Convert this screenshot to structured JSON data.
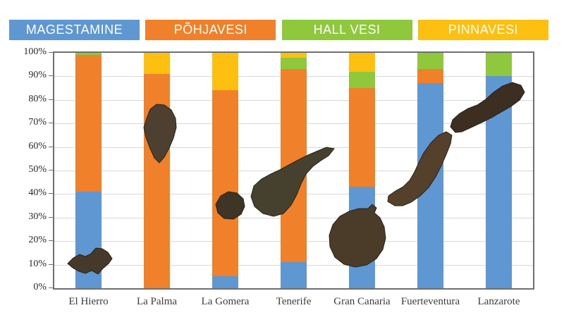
{
  "legend": {
    "items": [
      {
        "label": "MAGESTAMINE",
        "color": "#5F97D3"
      },
      {
        "label": "PÕHJAVESI",
        "color": "#F0802A"
      },
      {
        "label": "HALL VESI",
        "color": "#90C83D"
      },
      {
        "label": "PINNAVESI",
        "color": "#FDC011"
      }
    ]
  },
  "chart_data": {
    "type": "bar",
    "stacked": true,
    "unit": "percent",
    "categories": [
      "El Hierro",
      "La Palma",
      "La Gomera",
      "Tenerife",
      "Gran Canaria",
      "Fuerteventura",
      "Lanzarote"
    ],
    "series": [
      {
        "name": "MAGESTAMINE",
        "color": "#5F97D3",
        "values": [
          41,
          0,
          5,
          11,
          43,
          87,
          90
        ]
      },
      {
        "name": "PÕHJAVESI",
        "color": "#F0802A",
        "values": [
          58,
          91,
          79,
          82,
          42,
          6,
          0
        ]
      },
      {
        "name": "HALL VESI",
        "color": "#90C83D",
        "values": [
          1,
          0,
          0,
          5,
          7,
          7,
          10
        ]
      },
      {
        "name": "PINNAVESI",
        "color": "#FDC011",
        "values": [
          0,
          9,
          16,
          2,
          8,
          0,
          0
        ]
      }
    ],
    "y_ticks": [
      "0%",
      "10%",
      "20%",
      "30%",
      "40%",
      "50%",
      "60%",
      "70%",
      "80%",
      "90%",
      "100%"
    ],
    "ylim": [
      0,
      100
    ],
    "grid": true,
    "legend_position": "top"
  }
}
